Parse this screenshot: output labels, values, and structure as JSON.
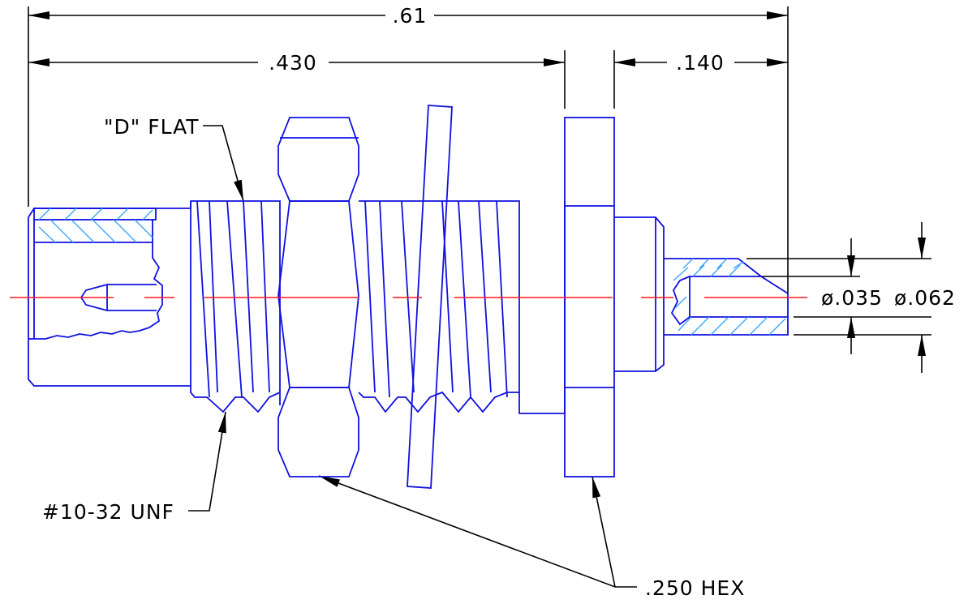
{
  "dimensions": {
    "overall_length": ".61",
    "body_length": ".430",
    "pin_length": ".140",
    "inner_diameter": "ø.035",
    "outer_diameter": "ø.062"
  },
  "callouts": {
    "d_flat": "\"D\" FLAT",
    "thread": "#10-32 UNF",
    "hex": ".250 HEX"
  },
  "colors": {
    "part_outline": "#1010e0",
    "hatching": "#3aa6ff",
    "centerline": "#ff1a1a",
    "dimension": "#000000"
  }
}
